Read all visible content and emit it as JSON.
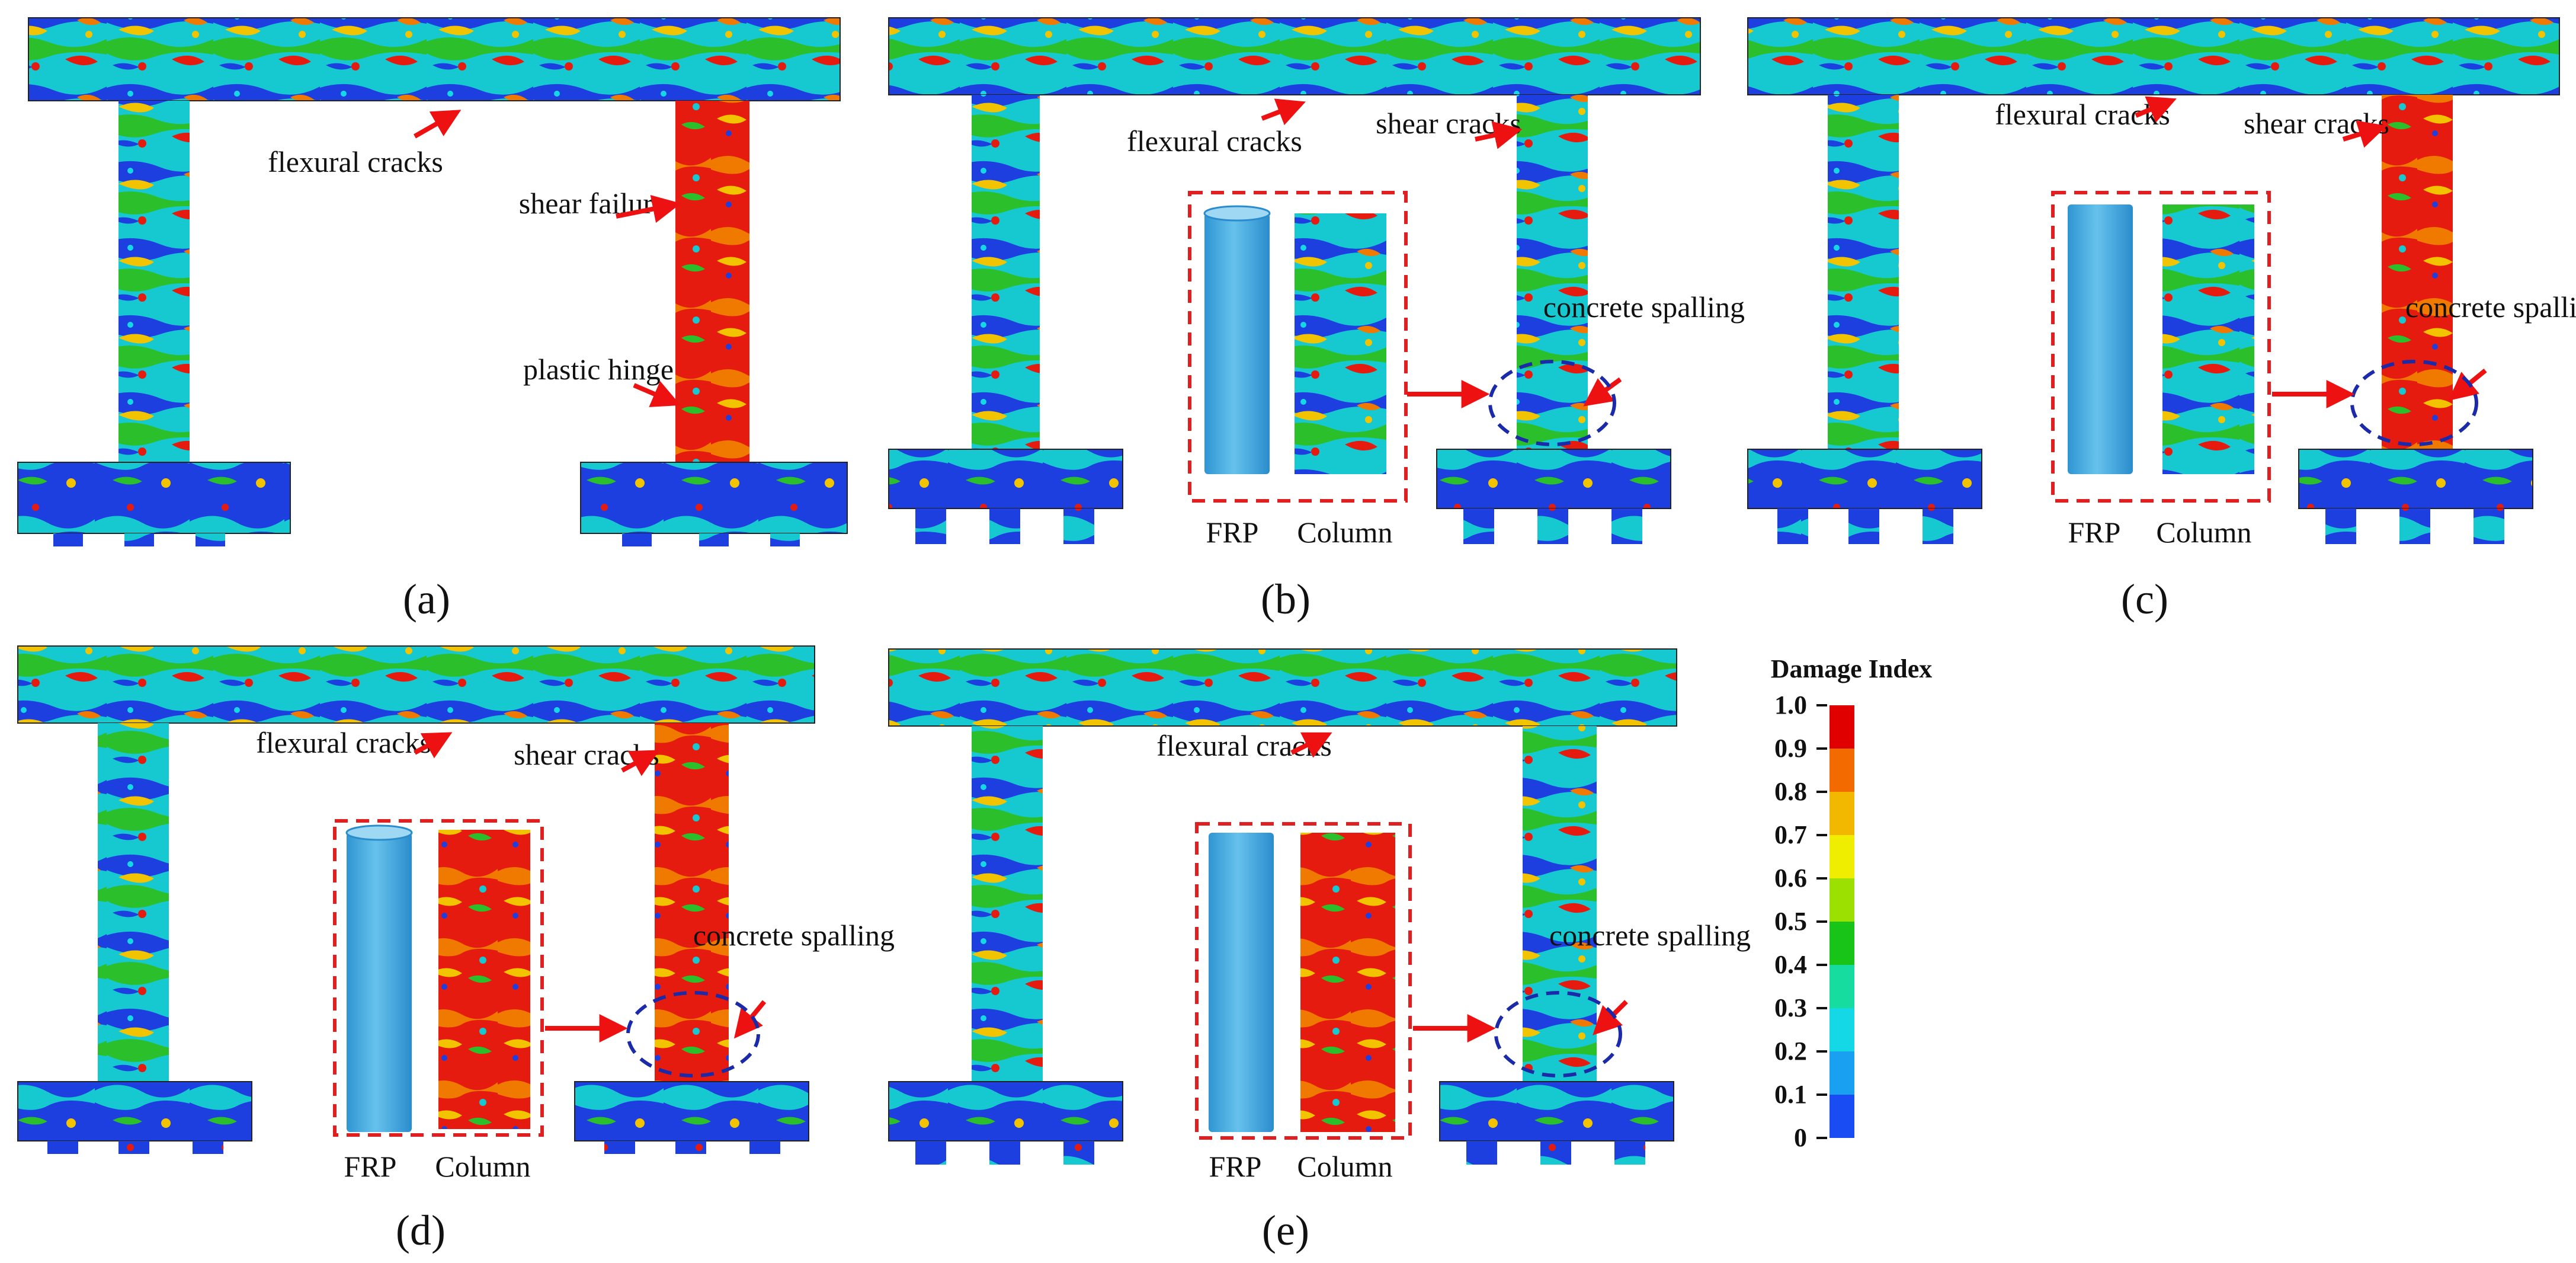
{
  "panels": [
    {
      "label": "(a)",
      "frp": false,
      "beam": "flexural cracks",
      "right_col": "shear failure",
      "hinge": "plastic hinge"
    },
    {
      "label": "(b)",
      "frp": true,
      "beam": "flexural cracks",
      "right_col": "shear cracks",
      "base": "concrete spalling",
      "inset": [
        "FRP",
        "Column"
      ]
    },
    {
      "label": "(c)",
      "frp": true,
      "beam": "flexural cracks",
      "right_col": "shear cracks",
      "base": "concrete spalling",
      "inset": [
        "FRP",
        "Column"
      ]
    },
    {
      "label": "(d)",
      "frp": true,
      "beam": "flexural cracks",
      "right_col": "shear cracks",
      "base": "concrete spalling",
      "inset": [
        "FRP",
        "Column"
      ]
    },
    {
      "label": "(e)",
      "frp": true,
      "beam": "flexural cracks",
      "right_col": "",
      "base": "concrete spalling",
      "inset": [
        "FRP",
        "Column"
      ]
    }
  ],
  "legend": {
    "title": "Damage Index",
    "ticks": [
      "1.0",
      "0.9",
      "0.8",
      "0.7",
      "0.6",
      "0.5",
      "0.4",
      "0.3",
      "0.2",
      "0.1",
      "0"
    ],
    "colors": [
      "#e00000",
      "#f26a00",
      "#f2b800",
      "#f0ee00",
      "#9be000",
      "#19c418",
      "#17dca0",
      "#15d8e6",
      "#1aa0f0",
      "#1a4cf4"
    ]
  },
  "colors": {
    "frp": "#4cb0e4",
    "frp_dark": "#2a8ccc",
    "arrow": "#ee1111",
    "dash_box": "#e02020",
    "dash_circle": "#1a2aa8"
  }
}
